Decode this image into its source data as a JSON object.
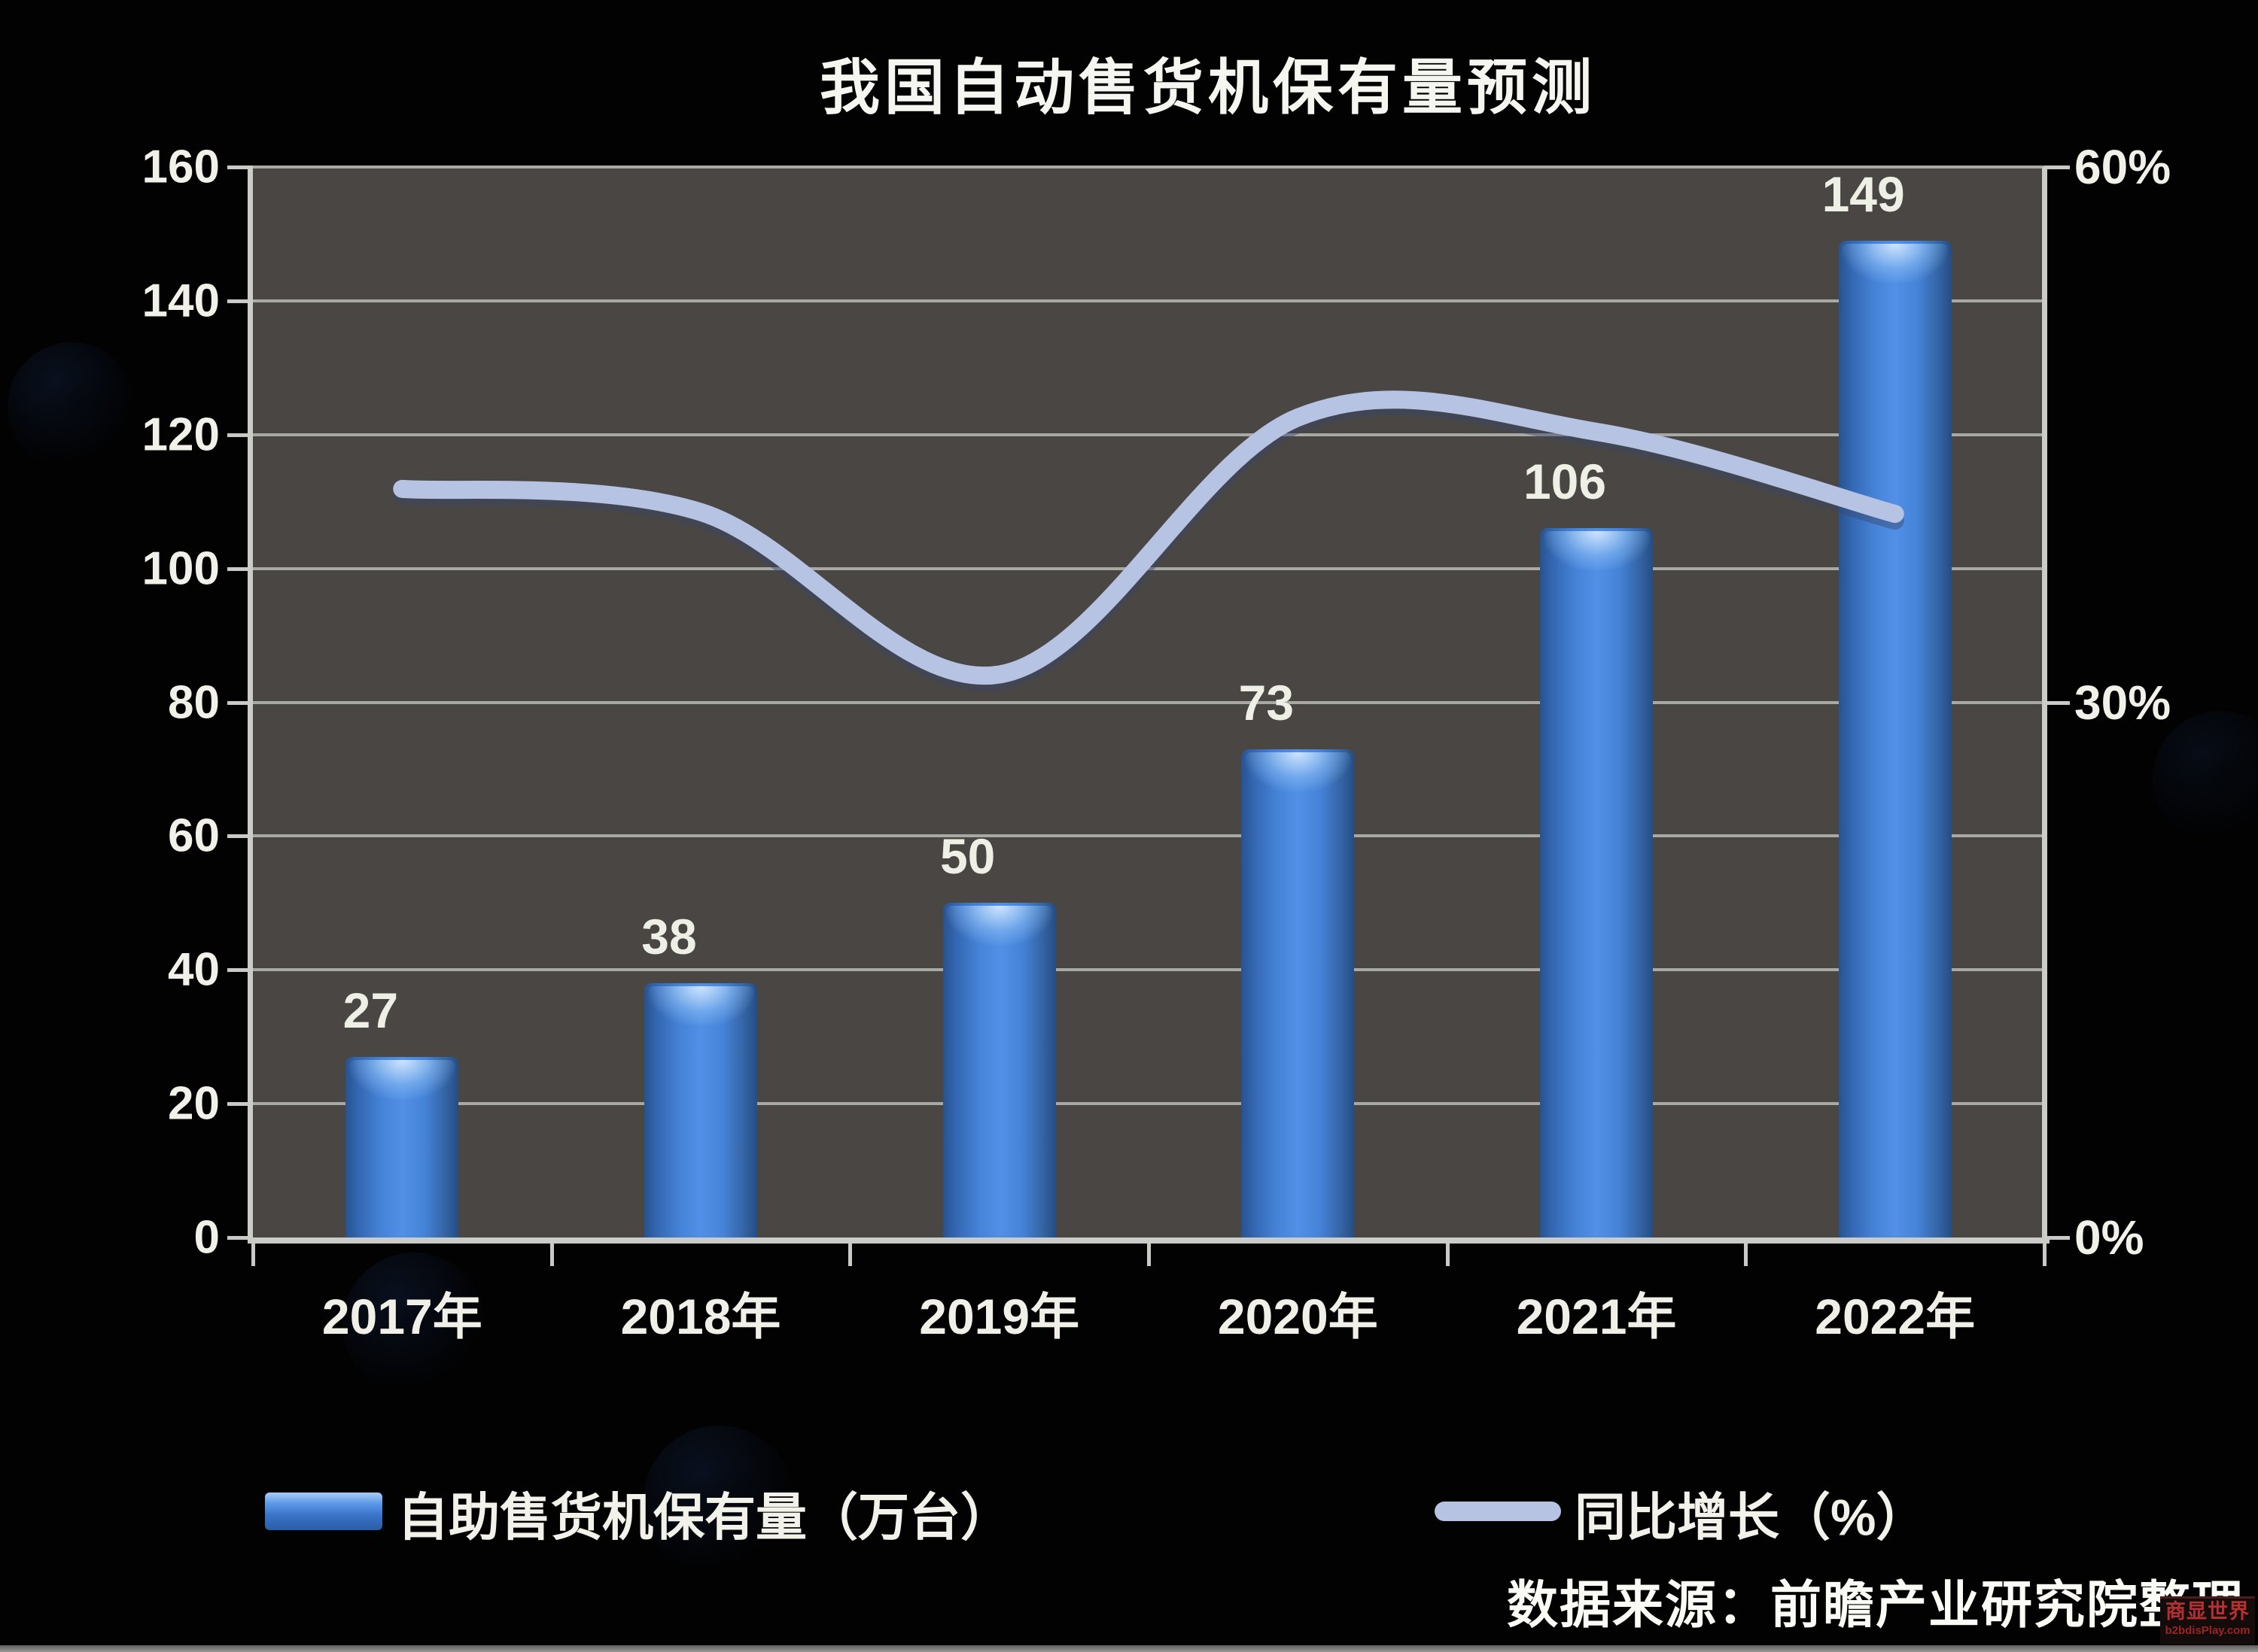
{
  "title": "我国自动售货机保有量预测",
  "chart_data": {
    "type": "bar",
    "subtype": "bar-line combo, dual axis",
    "title": "我国自动售货机保有量预测",
    "categories": [
      "2017年",
      "2018年",
      "2019年",
      "2020年",
      "2021年",
      "2022年"
    ],
    "series": [
      {
        "name": "自助售货机保有量（万台）",
        "type": "bar",
        "axis": "left",
        "values": [
          27,
          38,
          50,
          73,
          106,
          149
        ]
      },
      {
        "name": "同比增长（%）",
        "type": "line",
        "axis": "right",
        "values": [
          42.0,
          40.7,
          31.6,
          46.0,
          45.2,
          40.6
        ]
      }
    ],
    "bar_data_labels": [
      "27",
      "38",
      "50",
      "73",
      "106",
      "149"
    ],
    "left_axis": {
      "min": 0,
      "max": 160,
      "step": 20,
      "tick_labels": [
        "160",
        "140",
        "120",
        "100",
        "80",
        "60",
        "40",
        "20",
        "0"
      ]
    },
    "right_axis": {
      "min": 0,
      "max": 60,
      "tick_labels": [
        "60%",
        "30%",
        "0%"
      ],
      "tick_values": [
        60,
        30,
        0
      ]
    },
    "grid": true,
    "legend_position": "bottom"
  },
  "legend": {
    "bar_label": "自助售货机保有量（万台）",
    "line_label": "同比增长（%）"
  },
  "source_note": "数据来源：前瞻产业研究院整理",
  "site_watermark": {
    "line1": "商显世界",
    "line2": "b2bdisPlay.com"
  },
  "colors": {
    "page_bg": "#020202",
    "plot_bg": "#494643",
    "bar_main": "#4583d8",
    "line": "#b6c3e2",
    "grid": "#a8a8a5",
    "axis": "#cbcbc8",
    "text": "#f1f1e9",
    "watermark_red": "#b23030"
  }
}
